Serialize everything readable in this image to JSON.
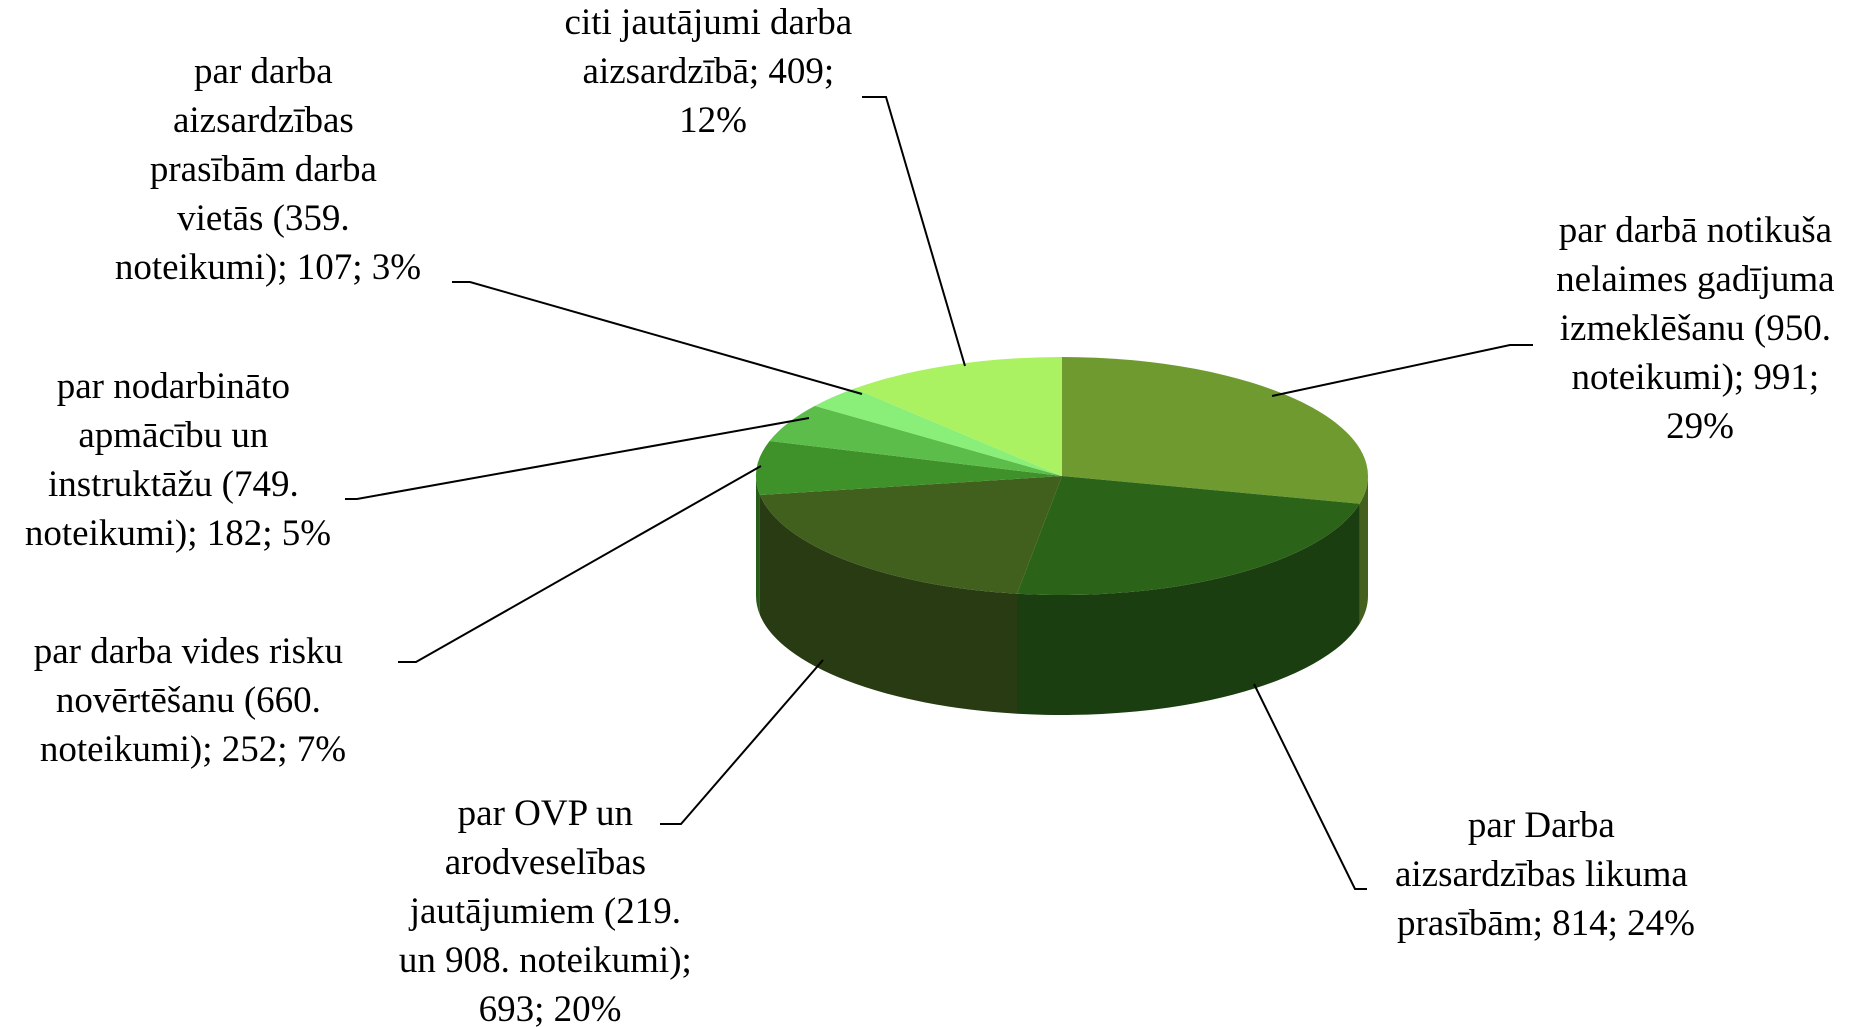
{
  "chart_data": {
    "type": "pie3d",
    "categories": [
      "par darbā notikuša nelaimes gadījuma izmeklēšanu (950. noteikumi); 991; 29%",
      "par Darba aizsardzības likuma prasībām; 814; 24%",
      "par OVP un arodveselības jautājumiem (219. un 908. noteikumi); 693; 20%",
      "par darba vides risku novērtēšanu (660. noteikumi); 252; 7%",
      "par nodarbināto apmācību un instruktāžu (749. noteikumi); 182; 5%",
      "par darba aizsardzības prasībām darba vietās (359. noteikumi); 107; 3%",
      "citi jautājumi darba aizsardzībā; 409; 12%"
    ],
    "values": [
      991,
      814,
      693,
      252,
      182,
      107,
      409
    ],
    "colors": [
      "#6f9a30",
      "#2b6419",
      "#415f1d",
      "#3f922a",
      "#5dbd4a",
      "#8aef78",
      "#abf262"
    ]
  }
}
